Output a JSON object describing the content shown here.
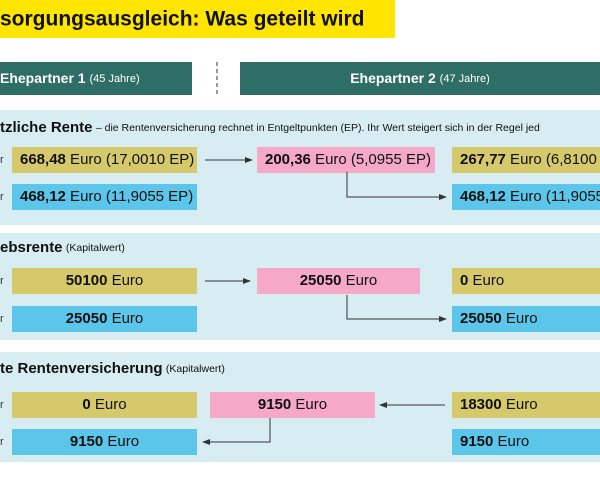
{
  "title": "sorgungsausgleich: Was geteilt wird",
  "header": {
    "partner1": {
      "name": "Ehepartner 1",
      "age": "(45 Jahre)"
    },
    "partner2": {
      "name": "Ehepartner 2",
      "age": "(47 Jahre)"
    }
  },
  "sections": [
    {
      "title": "tzliche Rente",
      "note": "– die Rentenversicherung rechnet in Entgeltpunkten (EP). Ihr Wert steigert sich in der Regel jed",
      "rows": [
        {
          "label": "r",
          "boxes": [
            {
              "amount": "668,48",
              "unit": " Euro (17,0010 EP)"
            },
            {
              "amount": "200,36",
              "unit": " Euro (5,0955 EP)"
            },
            {
              "amount": "267,77",
              "unit": " Euro (6,8100"
            }
          ]
        },
        {
          "label": "r",
          "boxes": [
            {
              "amount": "468,12",
              "unit": " Euro (11,9055 EP)"
            },
            {
              "amount": "468,12",
              "unit": " Euro (11,9055"
            }
          ]
        }
      ]
    },
    {
      "title": "ebsrente",
      "note": "(Kapitalwert)",
      "rows": [
        {
          "label": "r",
          "boxes": [
            {
              "amount": "50100",
              "unit": " Euro"
            },
            {
              "amount": "25050",
              "unit": " Euro"
            },
            {
              "amount": "0",
              "unit": " Euro"
            }
          ]
        },
        {
          "label": "r",
          "boxes": [
            {
              "amount": "25050",
              "unit": " Euro"
            },
            {
              "amount": "25050",
              "unit": " Euro"
            }
          ]
        }
      ]
    },
    {
      "title": "te Rentenversicherung",
      "note": "(Kapitalwert)",
      "rows": [
        {
          "label": "r",
          "boxes": [
            {
              "amount": "0",
              "unit": " Euro"
            },
            {
              "amount": "9150",
              "unit": " Euro"
            },
            {
              "amount": "18300",
              "unit": " Euro"
            }
          ]
        },
        {
          "label": "r",
          "boxes": [
            {
              "amount": "9150",
              "unit": " Euro"
            },
            {
              "amount": "9150",
              "unit": " Euro"
            }
          ]
        }
      ]
    }
  ]
}
